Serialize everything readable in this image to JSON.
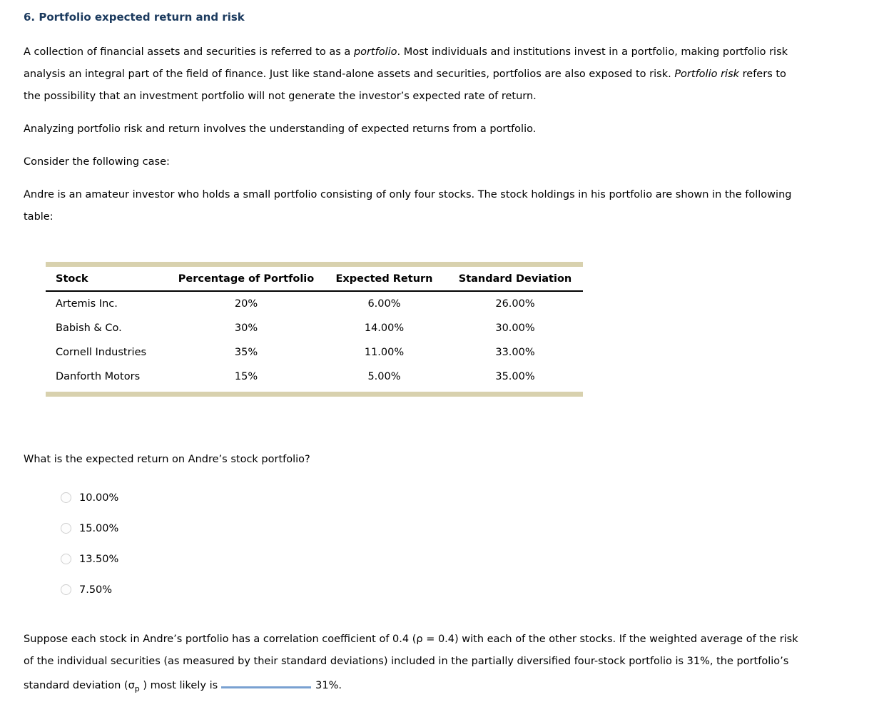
{
  "page": {
    "title": "6. Portfolio expected return and risk"
  },
  "intro": {
    "p1": {
      "part0": "A collection of financial assets and securities is referred to as a ",
      "part1_italic": "portfolio",
      "part2": ". Most individuals and institutions invest in a portfolio, making portfolio risk\nanalysis an integral part of the field of finance. Just like stand-alone assets and securities, portfolios are also exposed to risk. ",
      "part3_italic": "Portfolio risk",
      "part4": " refers to\nthe possibility that an investment portfolio will not generate the investor’s expected rate of return."
    },
    "p2": "Analyzing portfolio risk and return involves the understanding of expected returns from a portfolio.",
    "p3": "Consider the following case:",
    "p4": "Andre is an amateur investor who holds a small portfolio consisting of only four stocks. The stock holdings in his portfolio are shown in the following\ntable:"
  },
  "table": {
    "accent_color": "#d8d1ae",
    "headers": [
      "Stock",
      "Percentage of Portfolio",
      "Expected Return",
      "Standard Deviation"
    ],
    "rows": [
      {
        "stock": "Artemis Inc.",
        "percentage": "20%",
        "expected_return": "6.00%",
        "std_dev": "26.00%"
      },
      {
        "stock": "Babish & Co.",
        "percentage": "30%",
        "expected_return": "14.00%",
        "std_dev": "30.00%"
      },
      {
        "stock": "Cornell Industries",
        "percentage": "35%",
        "expected_return": "11.00%",
        "std_dev": "33.00%"
      },
      {
        "stock": "Danforth Motors",
        "percentage": "15%",
        "expected_return": "5.00%",
        "std_dev": "35.00%"
      }
    ]
  },
  "question": {
    "prompt": "What is the expected return on Andre’s stock portfolio?",
    "options": [
      "10.00%",
      "15.00%",
      "13.50%",
      "7.50%"
    ]
  },
  "followup": {
    "part0": "Suppose each stock in Andre’s portfolio has a correlation coefficient of 0.4 (ρ = 0.4) with each of the other stocks. If the weighted average of the risk\nof the individual securities (as measured by their standard deviations) included in the partially diversified four-stock portfolio is 31%, the portfolio’s\nstandard deviation (σ",
    "sigma_sub": "p",
    "part1": " ) most likely is",
    "answer_suffix": "31%.",
    "blank_color": "#79a1d1"
  }
}
